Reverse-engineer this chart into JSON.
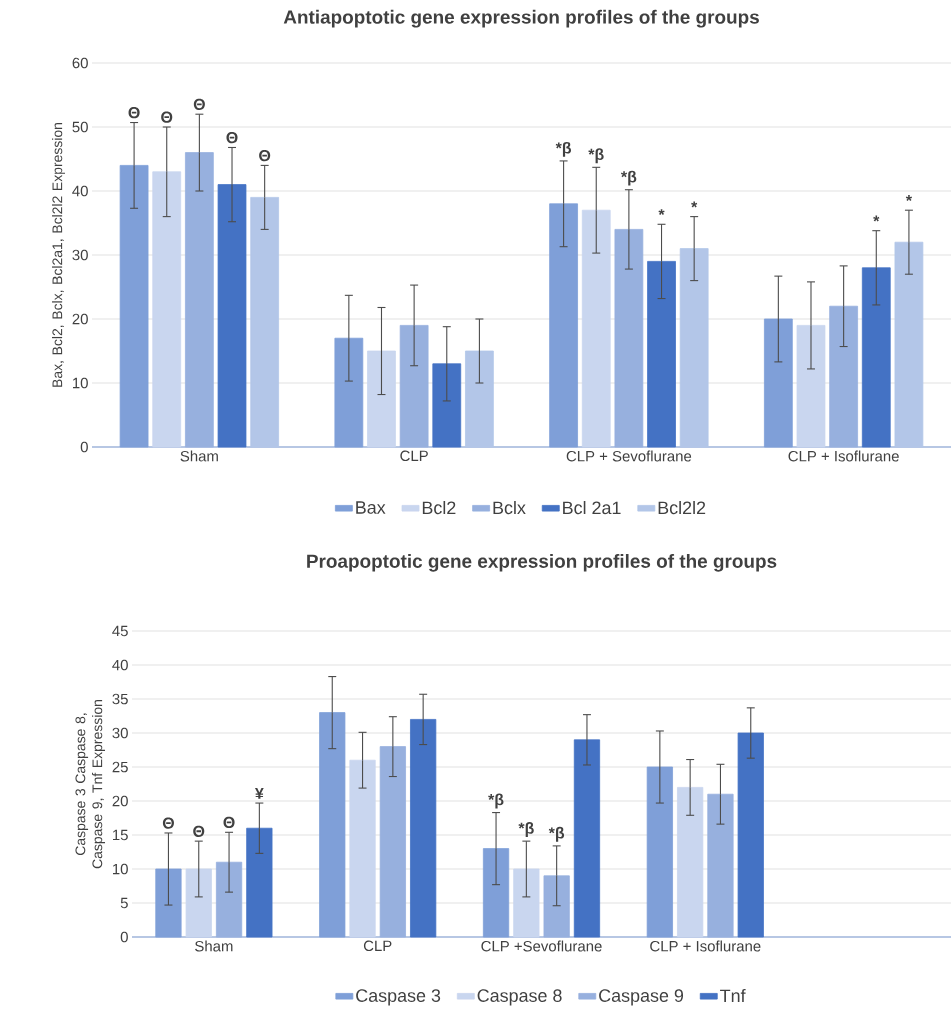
{
  "chart_data": [
    {
      "type": "bar",
      "title": "Antiapoptotic gene expression profiles of the groups",
      "ylabel": "Bax, Bcl2, Bclx,  Bcl2a1, Bcl2l2 Expression",
      "categories": [
        "Sham",
        "CLP",
        "CLP + Sevoflurane",
        "CLP + Isoflurane"
      ],
      "ylim": [
        0,
        60
      ],
      "yticks": [
        0,
        10,
        20,
        30,
        40,
        50,
        60
      ],
      "grid": "y",
      "legend": "bottom",
      "series": [
        {
          "name": "Bax",
          "color": "#7f9fd8",
          "values": [
            44,
            17,
            38,
            20
          ],
          "errors": [
            6.7,
            6.7,
            6.7,
            6.7
          ]
        },
        {
          "name": "Bcl2",
          "color": "#c9d6ef",
          "values": [
            43,
            15,
            37,
            19
          ],
          "errors": [
            7,
            6.8,
            6.7,
            6.8
          ]
        },
        {
          "name": "Bclx",
          "color": "#97b0de",
          "values": [
            46,
            19,
            34,
            22
          ],
          "errors": [
            6,
            6.3,
            6.2,
            6.3
          ]
        },
        {
          "name": "Bcl 2a1",
          "color": "#4472c4",
          "values": [
            41,
            13,
            29,
            28
          ],
          "errors": [
            5.8,
            5.8,
            5.8,
            5.8
          ]
        },
        {
          "name": "Bcl2l2",
          "color": "#b3c6e8",
          "values": [
            39,
            15,
            31,
            32
          ],
          "errors": [
            5,
            5,
            5,
            5
          ]
        }
      ],
      "annotations": [
        "Θ",
        "Θ",
        "Θ",
        "Θ",
        "Θ",
        "*β",
        "*β",
        "*β",
        "*",
        "*",
        "*",
        "*"
      ]
    },
    {
      "type": "bar",
      "title": "Proapoptotic gene expression profiles of the groups",
      "ylabel": "Caspase 3 Caspase 8, Caspase 9, Tnf Expression",
      "categories": [
        "Sham",
        "CLP",
        "CLP +Sevoflurane",
        "CLP + Isoflurane"
      ],
      "ylim": [
        0,
        45
      ],
      "yticks": [
        0,
        5,
        10,
        15,
        20,
        25,
        30,
        35,
        40,
        45
      ],
      "grid": "y",
      "legend": "bottom",
      "series": [
        {
          "name": "Caspase 3",
          "color": "#7f9fd8",
          "values": [
            10,
            33,
            13,
            25
          ],
          "errors": [
            5.3,
            5.3,
            5.3,
            5.3
          ]
        },
        {
          "name": "Caspase 8",
          "color": "#c9d6ef",
          "values": [
            10,
            26,
            10,
            22
          ],
          "errors": [
            4.1,
            4.1,
            4.1,
            4.1
          ]
        },
        {
          "name": "Caspase 9",
          "color": "#97b0de",
          "values": [
            11,
            28,
            9,
            21
          ],
          "errors": [
            4.4,
            4.4,
            4.4,
            4.4
          ]
        },
        {
          "name": "Tnf",
          "color": "#4472c4",
          "values": [
            16,
            32,
            29,
            30
          ],
          "errors": [
            3.7,
            3.7,
            3.7,
            3.7
          ]
        }
      ],
      "annotations": [
        "Θ",
        "Θ",
        "Θ",
        "¥",
        "*β",
        "*β",
        "*β"
      ]
    }
  ]
}
